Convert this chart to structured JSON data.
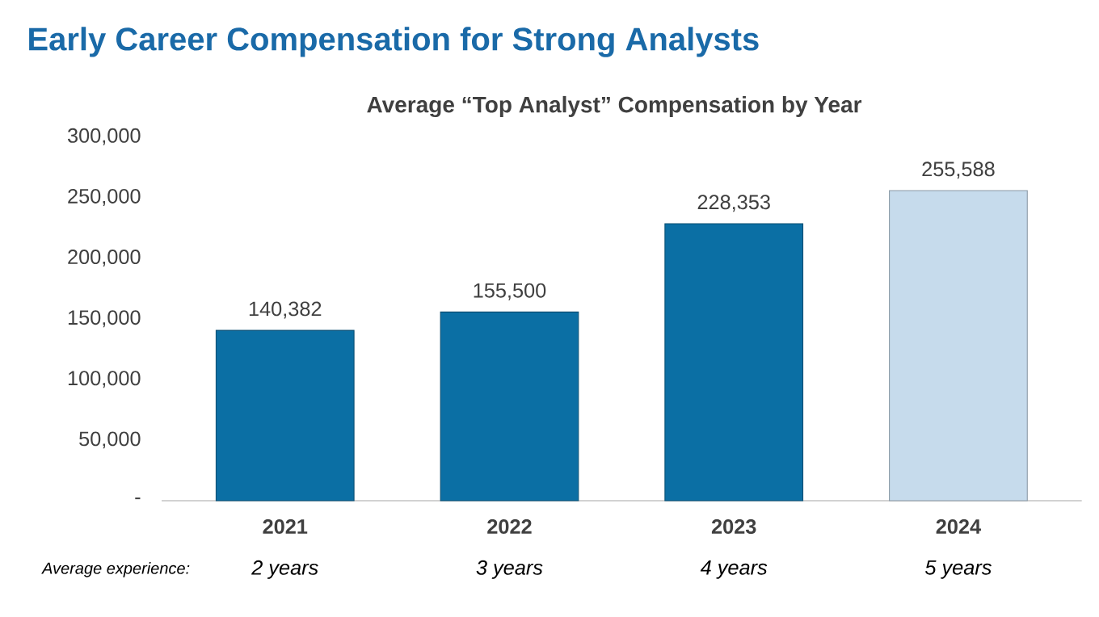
{
  "chart_data": {
    "type": "bar",
    "title": "Early Career Compensation for Strong Analysts",
    "subtitle": "Average “Top Analyst” Compensation by Year",
    "categories": [
      "2021",
      "2022",
      "2023",
      "2024"
    ],
    "values": [
      140382,
      155500,
      228353,
      255588
    ],
    "colors": [
      "#0b6fa4",
      "#0b6fa4",
      "#0b6fa4",
      "#c6dbec"
    ],
    "ylim": [
      0,
      300000
    ],
    "yticks": [
      {
        "value": 0,
        "label": "-"
      },
      {
        "value": 50000,
        "label": "50,000"
      },
      {
        "value": 100000,
        "label": "100,000"
      },
      {
        "value": 150000,
        "label": "150,000"
      },
      {
        "value": 200000,
        "label": "200,000"
      },
      {
        "value": 250000,
        "label": "250,000"
      },
      {
        "value": 300000,
        "label": "300,000"
      }
    ],
    "value_labels": [
      "140,382",
      "155,500",
      "228,353",
      "255,588"
    ],
    "annotations": [
      "Average experience:",
      "2 years",
      "3 years",
      "4 years",
      "5 years"
    ]
  }
}
